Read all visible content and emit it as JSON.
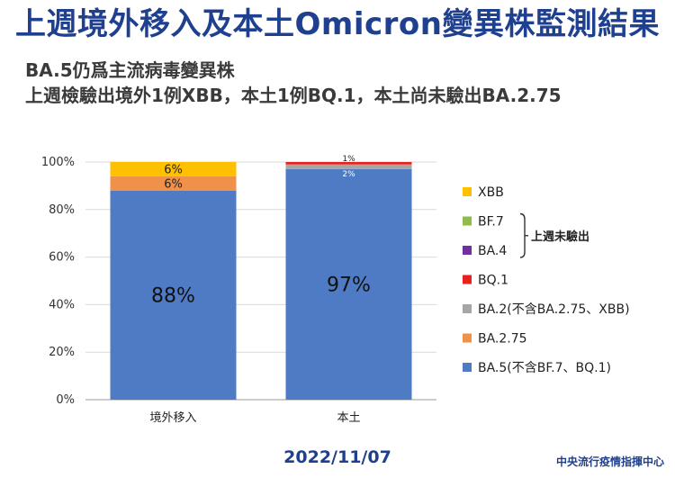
{
  "header": {
    "title": "上週境外移入及本土Omicron變異株監測結果",
    "subtitle_line1": "BA.5仍爲主流病毒變異株",
    "subtitle_line2": "上週檢驗出境外1例XBB，本土1例BQ.1，本土尚未驗出BA.2.75"
  },
  "footer": {
    "date": "2022/11/07",
    "source": "中央流行疫情指揮中心"
  },
  "chart_data": {
    "type": "bar",
    "stacked": true,
    "percent_axis": true,
    "categories": [
      "境外移入",
      "本土"
    ],
    "ylim": [
      0,
      100
    ],
    "yticks": [
      "0%",
      "20%",
      "40%",
      "60%",
      "80%",
      "100%"
    ],
    "grid": true,
    "legend_position": "right",
    "series": [
      {
        "name": "BA.5(不含BF.7、BQ.1)",
        "color": "#4e7bc4",
        "values": [
          88,
          97
        ],
        "labels": [
          "88%",
          "97%"
        ]
      },
      {
        "name": "BA.2.75",
        "color": "#f0914a",
        "values": [
          6,
          0
        ],
        "labels": [
          "6%",
          ""
        ]
      },
      {
        "name": "BA.2(不含BA.2.75、XBB)",
        "color": "#a6a6a6",
        "values": [
          0,
          2
        ],
        "labels": [
          "",
          "2%"
        ]
      },
      {
        "name": "BQ.1",
        "color": "#e8201e",
        "values": [
          0,
          1
        ],
        "labels": [
          "",
          "1%"
        ]
      },
      {
        "name": "BA.4",
        "color": "#7030a0",
        "values": [
          0,
          0
        ],
        "labels": [
          "",
          ""
        ]
      },
      {
        "name": "BF.7",
        "color": "#8fbc4c",
        "values": [
          0,
          0
        ],
        "labels": [
          "",
          ""
        ]
      },
      {
        "name": "XBB",
        "color": "#ffc000",
        "values": [
          6,
          0
        ],
        "labels": [
          "6%",
          ""
        ]
      }
    ],
    "legend_order": [
      "XBB",
      "BF.7",
      "BA.4",
      "BQ.1",
      "BA.2(不含BA.2.75、XBB)",
      "BA.2.75",
      "BA.5(不含BF.7、BQ.1)"
    ],
    "legend_bracket": {
      "covers": [
        "BF.7",
        "BA.4"
      ],
      "label": "上週未驗出"
    }
  }
}
